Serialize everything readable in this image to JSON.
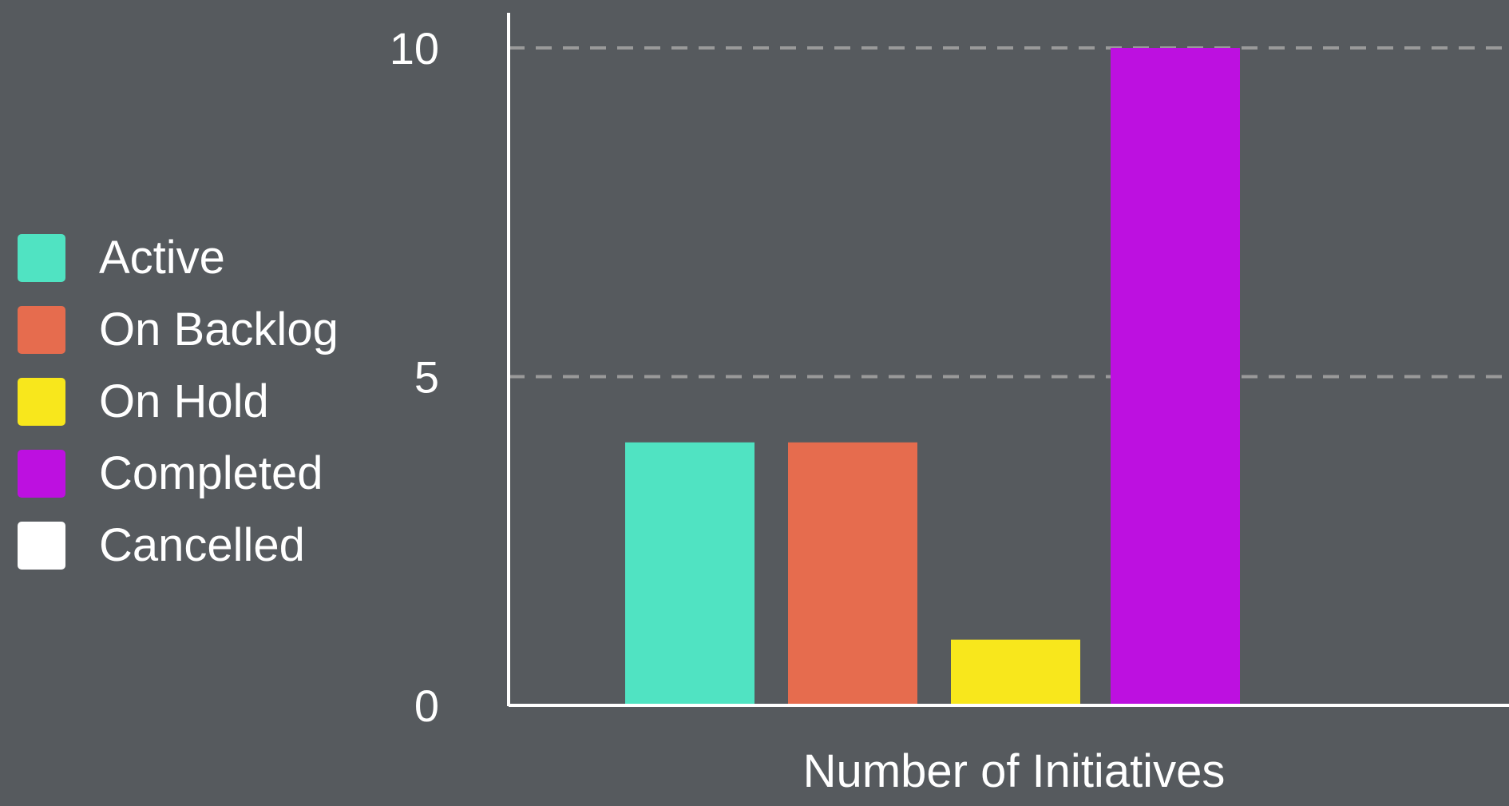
{
  "chart_data": {
    "type": "bar",
    "title": "",
    "xlabel": "Number of Initiatives",
    "ylabel": "",
    "ylim": [
      0,
      10
    ],
    "yticks": [
      0,
      5,
      10
    ],
    "grid": true,
    "legend_position": "left",
    "categories": [
      "Active",
      "On Backlog",
      "On Hold",
      "Completed",
      "Cancelled"
    ],
    "values": [
      4,
      4,
      1,
      10,
      0
    ],
    "colors": [
      "#50e3c2",
      "#e66c4e",
      "#f8e71c",
      "#bd10e0",
      "#ffffff"
    ]
  },
  "theme": {
    "background": "#565a5e",
    "axis_color": "#ffffff",
    "grid_color": "#9a9a9a",
    "text_color": "#ffffff"
  }
}
